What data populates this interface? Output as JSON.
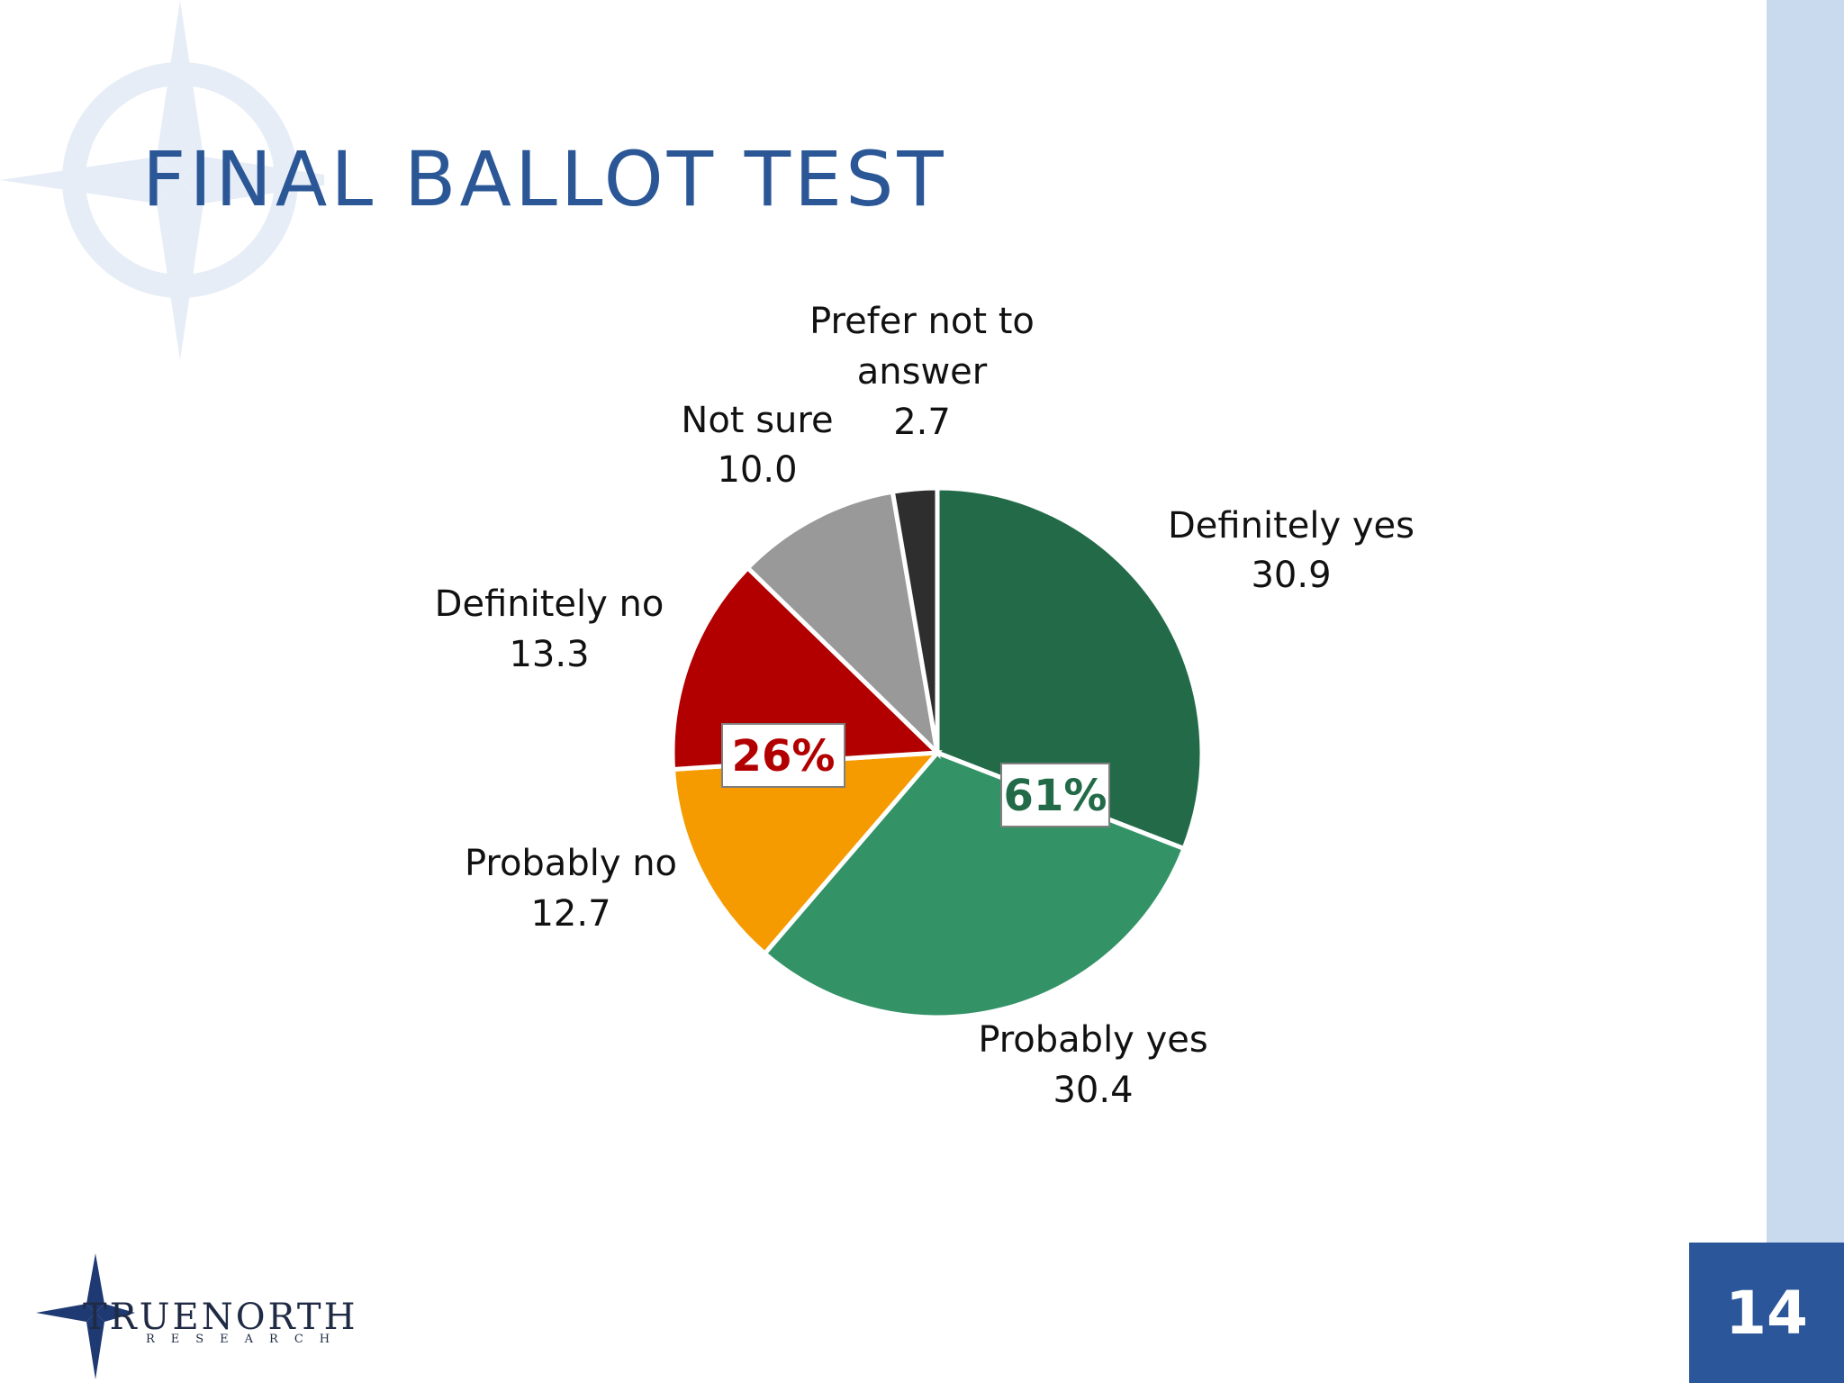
{
  "slide": {
    "title": "FINAL BALLOT TEST",
    "page_number": "14"
  },
  "logo": {
    "name": "TRUENORTH",
    "sub": "RESEARCH"
  },
  "colors": {
    "title": "#2b5797",
    "band": "#c9d9ee",
    "page_box": "#2b579a"
  },
  "chart_data": {
    "type": "pie",
    "slices": [
      {
        "label": "Definitely yes",
        "value": 30.9,
        "color": "#236b48"
      },
      {
        "label": "Probably yes",
        "value": 30.4,
        "color": "#339366"
      },
      {
        "label": "Probably no",
        "value": 12.7,
        "color": "#f59b00"
      },
      {
        "label": "Definitely no",
        "value": 13.3,
        "color": "#b20000"
      },
      {
        "label": "Not sure",
        "value": 10.0,
        "color": "#999999"
      },
      {
        "label": "Prefer not to answer",
        "value": 2.7,
        "color": "#2e2e2e"
      }
    ],
    "value_labels": [
      "30.9",
      "30.4",
      "12.7",
      "13.3",
      "10.0",
      "2.7"
    ],
    "callouts": [
      {
        "text": "61%",
        "color": "#236b48"
      },
      {
        "text": "26%",
        "color": "#b20000"
      }
    ]
  }
}
